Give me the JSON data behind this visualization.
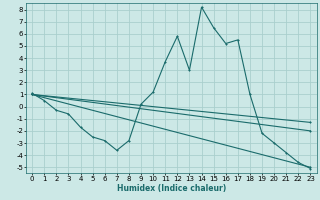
{
  "xlabel": "Humidex (Indice chaleur)",
  "bg_color": "#cce8e6",
  "grid_color": "#aacfcd",
  "line_color": "#1a6b6b",
  "xlim": [
    -0.5,
    23.5
  ],
  "ylim": [
    -5.5,
    8.5
  ],
  "xticks": [
    0,
    1,
    2,
    3,
    4,
    5,
    6,
    7,
    8,
    9,
    10,
    11,
    12,
    13,
    14,
    15,
    16,
    17,
    18,
    19,
    20,
    21,
    22,
    23
  ],
  "yticks": [
    -5,
    -4,
    -3,
    -2,
    -1,
    0,
    1,
    2,
    3,
    4,
    5,
    6,
    7,
    8
  ],
  "series1_x": [
    0,
    1,
    2,
    3,
    4,
    5,
    6,
    7,
    8,
    9,
    10,
    11,
    12,
    13,
    14,
    15,
    16,
    17,
    18,
    19,
    20,
    21,
    22,
    23
  ],
  "series1_y": [
    1.1,
    0.5,
    -0.3,
    -0.6,
    -1.7,
    -2.5,
    -2.8,
    -3.6,
    -2.8,
    0.2,
    1.2,
    3.7,
    5.8,
    3.0,
    8.2,
    6.5,
    5.2,
    5.5,
    1.0,
    -2.2,
    -3.0,
    -3.8,
    -4.6,
    -5.1
  ],
  "series2_x": [
    0,
    23
  ],
  "series2_y": [
    1.0,
    -5.0
  ],
  "series3_x": [
    0,
    23
  ],
  "series3_y": [
    1.0,
    -2.0
  ],
  "series4_x": [
    0,
    23
  ],
  "series4_y": [
    1.0,
    -1.3
  ],
  "tick_fontsize": 5.0,
  "xlabel_fontsize": 5.5
}
